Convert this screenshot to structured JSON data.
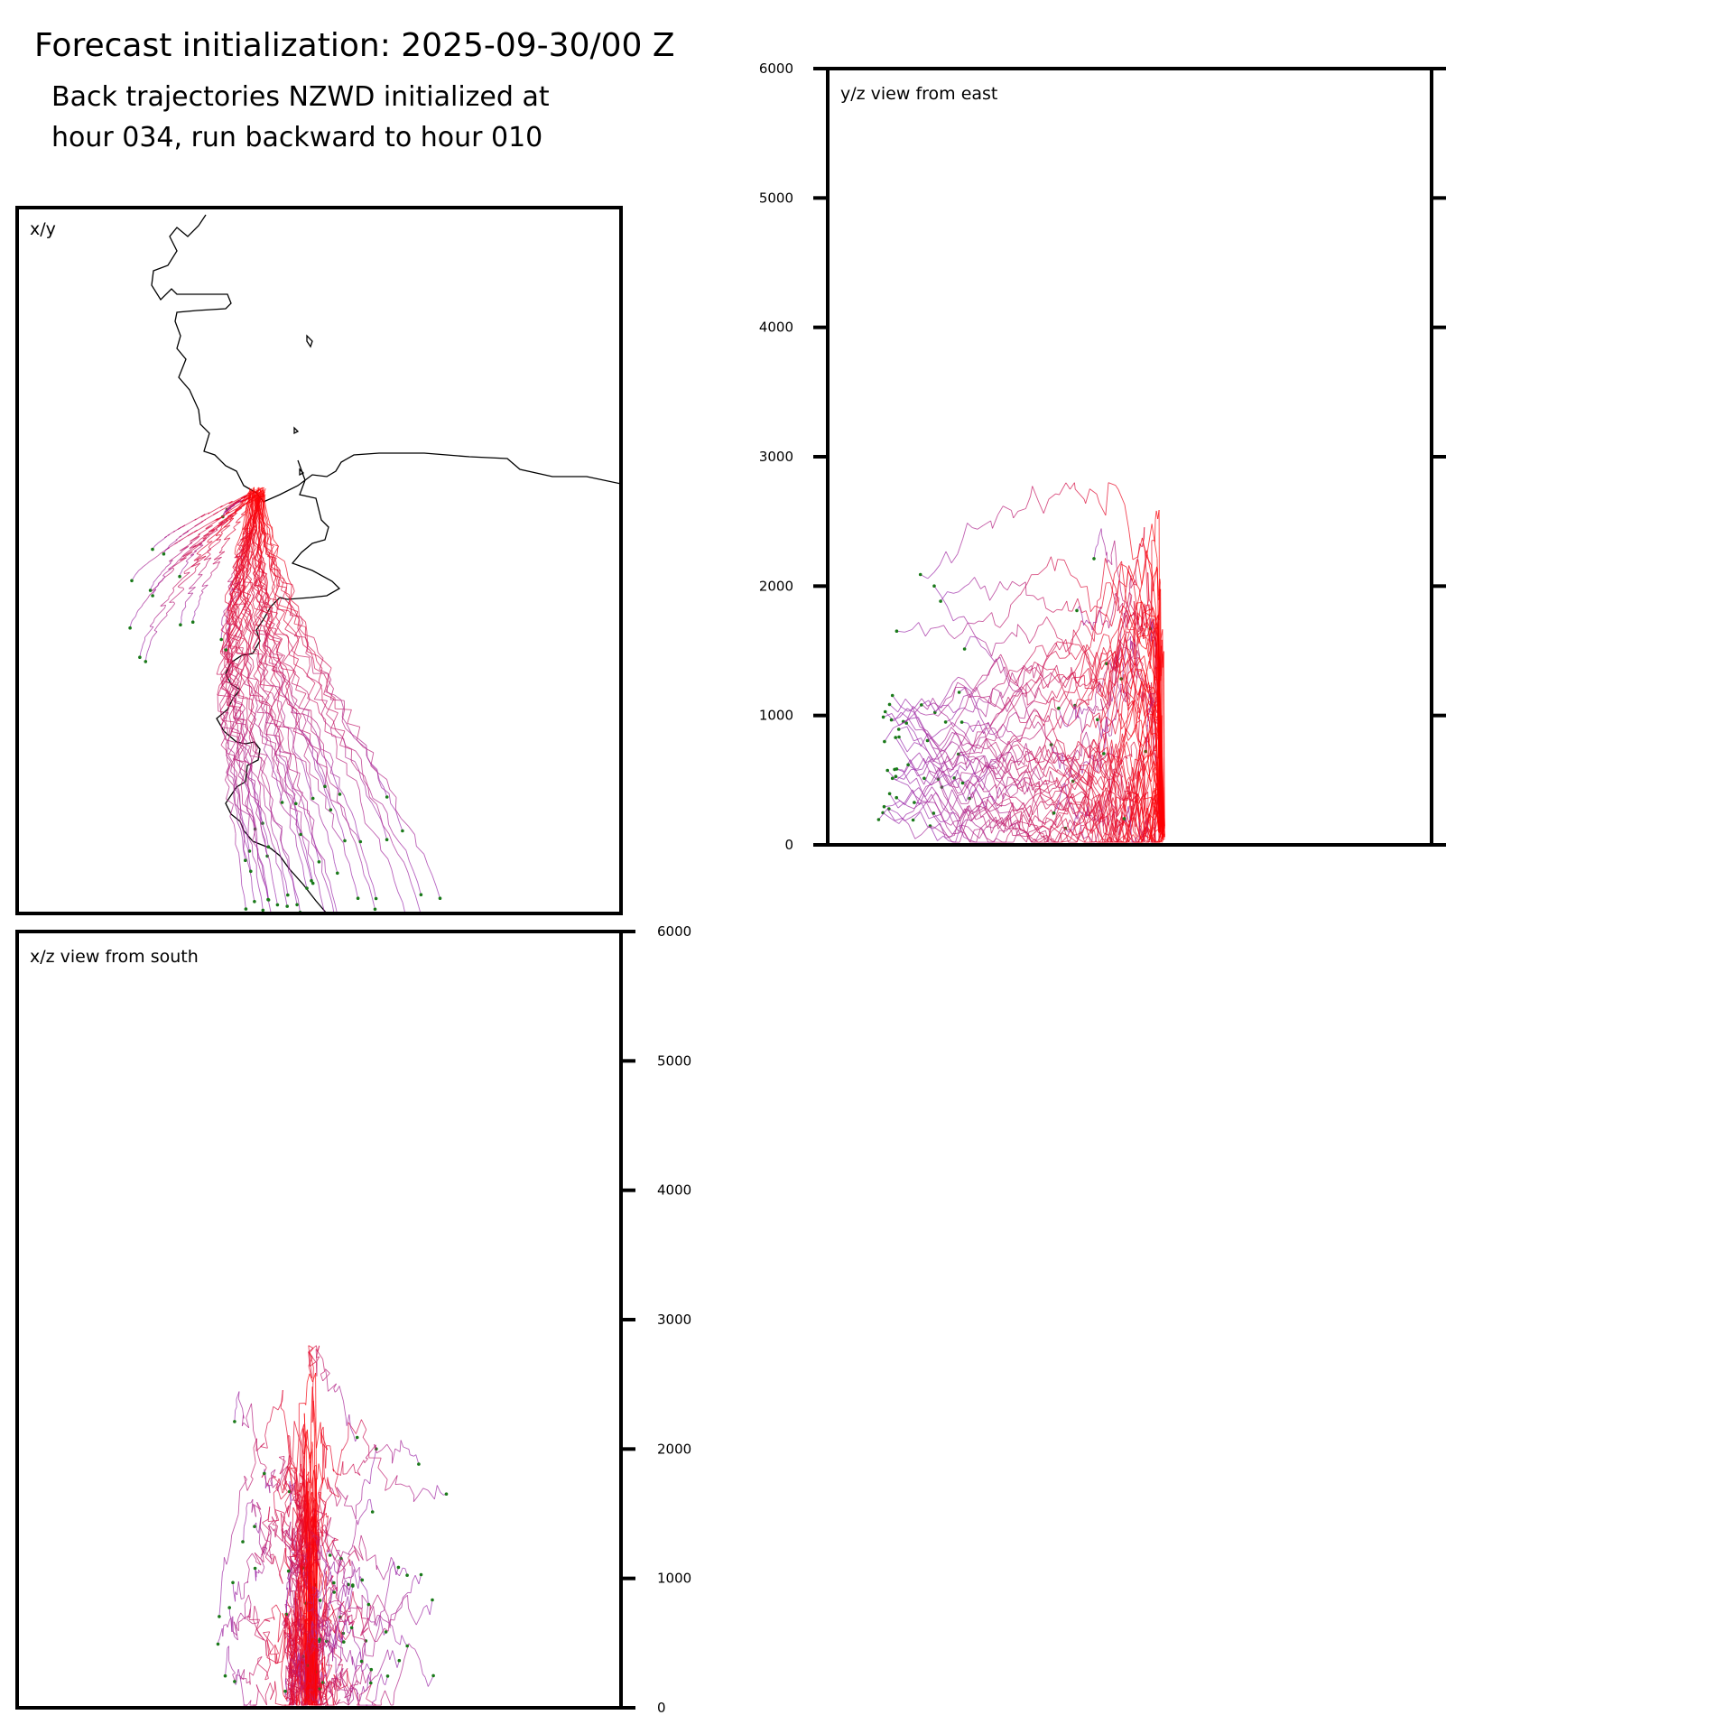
{
  "header": {
    "title": "Forecast initialization: 2025-09-30/00 Z",
    "subtitle_line1": "Back trajectories NZWD initialized at",
    "subtitle_line2": "hour 034, run backward to hour 010"
  },
  "colors": {
    "trajectory_early": "#9b30b0",
    "trajectory_late": "#ff0000",
    "endpoint": "#1a7a1a",
    "coast": "#000000",
    "frame": "#000000"
  },
  "chart_data": [
    {
      "type": "line",
      "panel": "xy",
      "label": "x/y",
      "description_axis": "horizontal map projection",
      "trajectory_count": 60
    },
    {
      "type": "line",
      "panel": "yz",
      "label": "y/z view from east",
      "ylim": [
        0,
        6000
      ],
      "yticks": [
        0,
        1000,
        2000,
        3000,
        4000,
        5000,
        6000
      ],
      "ytick_labels": [
        "0",
        "1000",
        "2000",
        "3000",
        "4000",
        "5000",
        "6000"
      ],
      "ytick_side": "left",
      "trajectory_count": 60
    },
    {
      "type": "line",
      "panel": "xz",
      "label": "x/z view from south",
      "ylim": [
        0,
        6000
      ],
      "yticks": [
        0,
        1000,
        2000,
        3000,
        4000,
        5000,
        6000
      ],
      "ytick_labels": [
        "0",
        "1000",
        "2000",
        "3000",
        "4000",
        "5000",
        "6000"
      ],
      "ytick_side": "right",
      "trajectory_count": 60
    }
  ]
}
